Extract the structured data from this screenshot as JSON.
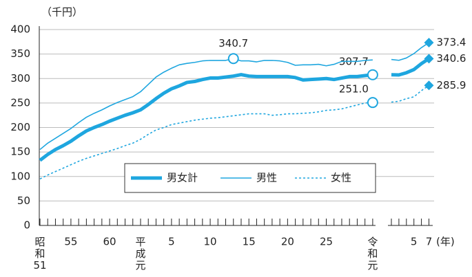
{
  "chart_data": [
    {
      "type": "line",
      "y_label": "（千円）",
      "x_label": "(年)",
      "ylim": [
        0,
        400
      ],
      "yticks": [
        0,
        50,
        100,
        150,
        200,
        250,
        300,
        350,
        400
      ],
      "grid": true,
      "legend": "bottom",
      "label_marker": "circle",
      "categories": [
        "昭和51",
        null,
        null,
        null,
        "55",
        null,
        null,
        null,
        null,
        "60",
        null,
        null,
        null,
        "平成元",
        null,
        null,
        null,
        "5",
        null,
        null,
        null,
        null,
        "10",
        null,
        null,
        null,
        null,
        "15",
        null,
        null,
        null,
        null,
        "20",
        null,
        null,
        null,
        null,
        "25",
        null,
        null,
        null,
        null,
        null,
        "令和元"
      ],
      "series": [
        {
          "name": "男女計",
          "color": "#1ea6df",
          "style": "thick",
          "values": [
            133,
            145,
            155,
            163,
            172,
            183,
            193,
            200,
            206,
            213,
            219,
            225,
            230,
            236,
            247,
            259,
            270,
            279,
            285,
            292,
            294,
            298,
            301,
            301,
            303,
            305,
            308,
            305,
            304,
            304,
            304,
            304,
            304,
            302,
            297,
            298,
            299,
            300,
            298,
            301,
            304,
            304,
            306,
            307.7
          ],
          "value_labels": [
            null,
            null,
            null,
            null,
            null,
            null,
            null,
            null,
            null,
            null,
            null,
            null,
            null,
            null,
            null,
            null,
            null,
            null,
            null,
            null,
            null,
            null,
            null,
            null,
            null,
            null,
            null,
            null,
            null,
            null,
            null,
            null,
            null,
            null,
            null,
            null,
            null,
            null,
            null,
            null,
            null,
            null,
            null,
            "307.7"
          ]
        },
        {
          "name": "男性",
          "color": "#1ea6df",
          "style": "thin",
          "values": [
            155,
            168,
            178,
            188,
            198,
            210,
            221,
            229,
            236,
            244,
            251,
            257,
            263,
            273,
            288,
            303,
            313,
            321,
            328,
            331,
            333,
            336,
            337,
            337,
            337,
            340.7,
            336,
            336,
            334,
            337,
            337,
            336,
            333,
            327,
            328,
            328,
            329,
            326,
            329,
            335,
            335,
            335,
            337,
            338
          ],
          "value_labels": [
            null,
            null,
            null,
            null,
            null,
            null,
            null,
            null,
            null,
            null,
            null,
            null,
            null,
            null,
            null,
            null,
            null,
            null,
            null,
            null,
            null,
            null,
            null,
            null,
            null,
            "340.7",
            null,
            null,
            null,
            null,
            null,
            null,
            null,
            null,
            null,
            null,
            null,
            null,
            null,
            null,
            null,
            null,
            null,
            null
          ]
        },
        {
          "name": "女性",
          "color": "#1ea6df",
          "style": "dashed",
          "values": [
            95,
            103,
            110,
            117,
            124,
            131,
            137,
            142,
            147,
            152,
            157,
            163,
            168,
            176,
            186,
            195,
            200,
            206,
            209,
            212,
            215,
            217,
            219,
            220,
            222,
            224,
            226,
            228,
            228,
            228,
            225,
            226,
            228,
            228,
            229,
            230,
            232,
            235,
            236,
            238,
            242,
            246,
            250,
            251.0
          ],
          "value_labels": [
            null,
            null,
            null,
            null,
            null,
            null,
            null,
            null,
            null,
            null,
            null,
            null,
            null,
            null,
            null,
            null,
            null,
            null,
            null,
            null,
            null,
            null,
            null,
            null,
            null,
            null,
            null,
            null,
            null,
            null,
            null,
            null,
            null,
            null,
            null,
            null,
            null,
            null,
            null,
            null,
            null,
            null,
            null,
            "251.0"
          ]
        }
      ]
    },
    {
      "type": "line",
      "label_marker": "diamond",
      "categories": [
        null,
        null,
        null,
        "5",
        null,
        "7"
      ],
      "series": [
        {
          "values": [
            307.7,
            307.4,
            311.8,
            318.3,
            330.4,
            340.6
          ],
          "value_labels": [
            null,
            null,
            null,
            null,
            null,
            "340.6"
          ]
        },
        {
          "values": [
            338.8,
            337.2,
            342.0,
            350.9,
            363.1,
            373.4
          ],
          "value_labels": [
            null,
            null,
            null,
            null,
            null,
            "373.4"
          ]
        },
        {
          "values": [
            251.8,
            253.6,
            258.9,
            262.6,
            275.3,
            285.9
          ],
          "value_labels": [
            null,
            null,
            null,
            null,
            null,
            "285.9"
          ]
        }
      ]
    }
  ]
}
